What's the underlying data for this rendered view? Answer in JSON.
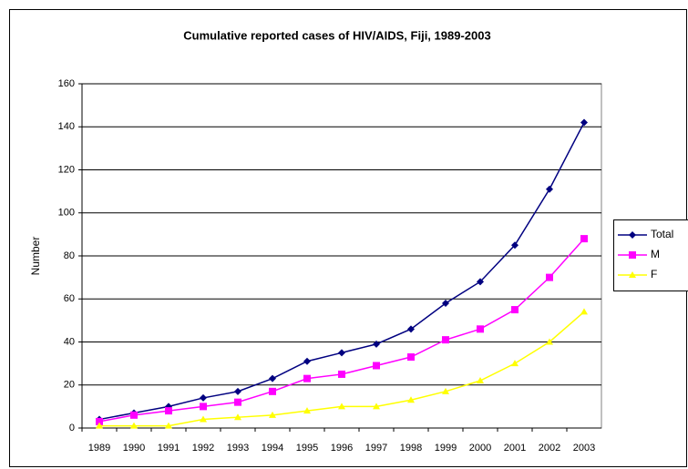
{
  "chart_data": {
    "type": "line",
    "title": "Cumulative reported cases of HIV/AIDS, Fiji, 1989-2003",
    "y_label": "Number",
    "categories": [
      "1989",
      "1990",
      "1991",
      "1992",
      "1993",
      "1994",
      "1995",
      "1996",
      "1997",
      "1998",
      "1999",
      "2000",
      "2001",
      "2002",
      "2003"
    ],
    "series": [
      {
        "name": "Total",
        "color": "#000080",
        "marker": "diamond",
        "values": [
          4,
          7,
          10,
          14,
          17,
          23,
          31,
          35,
          39,
          46,
          58,
          68,
          85,
          111,
          142
        ]
      },
      {
        "name": "M",
        "color": "#ff00ff",
        "marker": "square",
        "values": [
          3,
          6,
          8,
          10,
          12,
          17,
          23,
          25,
          29,
          33,
          41,
          46,
          55,
          70,
          88
        ]
      },
      {
        "name": "F",
        "color": "#ffff00",
        "marker": "triangle",
        "values": [
          1,
          1,
          1,
          4,
          5,
          6,
          8,
          10,
          10,
          13,
          17,
          22,
          30,
          40,
          54
        ]
      }
    ],
    "ylim": [
      0,
      160
    ],
    "yticks": [
      0,
      20,
      40,
      60,
      80,
      100,
      120,
      140,
      160
    ],
    "grid": true,
    "legend": "right"
  }
}
